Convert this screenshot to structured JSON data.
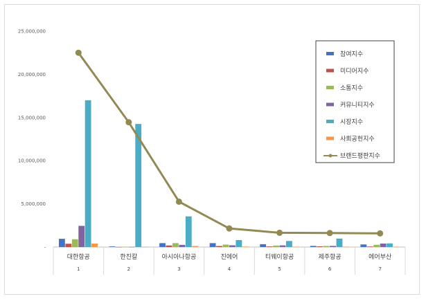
{
  "chart_data": {
    "type": "bar",
    "categories": [
      "대한항공",
      "한진칼",
      "아시아나항공",
      "진에어",
      "티웨이항공",
      "제주항공",
      "에어부산"
    ],
    "category_index": [
      "1",
      "2",
      "3",
      "4",
      "5",
      "6",
      "7"
    ],
    "ylim": [
      0,
      25000000
    ],
    "yticks": [
      0,
      5000000,
      10000000,
      15000000,
      20000000,
      25000000
    ],
    "ytick_labels": [
      "-",
      "5,000,000",
      "10,000,000",
      "15,000,000",
      "20,000,000",
      "25,000,000"
    ],
    "grid": false,
    "legend_position": "top-right",
    "series": [
      {
        "name": "참여지수",
        "type": "bar",
        "color": "#4472c4",
        "values": [
          950000,
          70000,
          450000,
          450000,
          330000,
          130000,
          300000
        ]
      },
      {
        "name": "미디어지수",
        "type": "bar",
        "color": "#c0504d",
        "values": [
          380000,
          10000,
          180000,
          120000,
          70000,
          80000,
          60000
        ]
      },
      {
        "name": "소통지수",
        "type": "bar",
        "color": "#9bbb59",
        "values": [
          900000,
          30000,
          450000,
          280000,
          170000,
          120000,
          260000
        ]
      },
      {
        "name": "커뮤니티지수",
        "type": "bar",
        "color": "#8064a2",
        "values": [
          2450000,
          20000,
          250000,
          200000,
          190000,
          130000,
          400000
        ]
      },
      {
        "name": "시장지수",
        "type": "bar",
        "color": "#4bacc6",
        "values": [
          17000000,
          14250000,
          3550000,
          800000,
          700000,
          980000,
          420000
        ]
      },
      {
        "name": "사회공헌지수",
        "type": "bar",
        "color": "#f79646",
        "values": [
          400000,
          10000,
          120000,
          50000,
          30000,
          40000,
          30000
        ]
      },
      {
        "name": "브랜드평판지수",
        "type": "line",
        "color": "#938953",
        "values": [
          22500000,
          14450000,
          5250000,
          2150000,
          1650000,
          1620000,
          1580000
        ]
      }
    ]
  }
}
